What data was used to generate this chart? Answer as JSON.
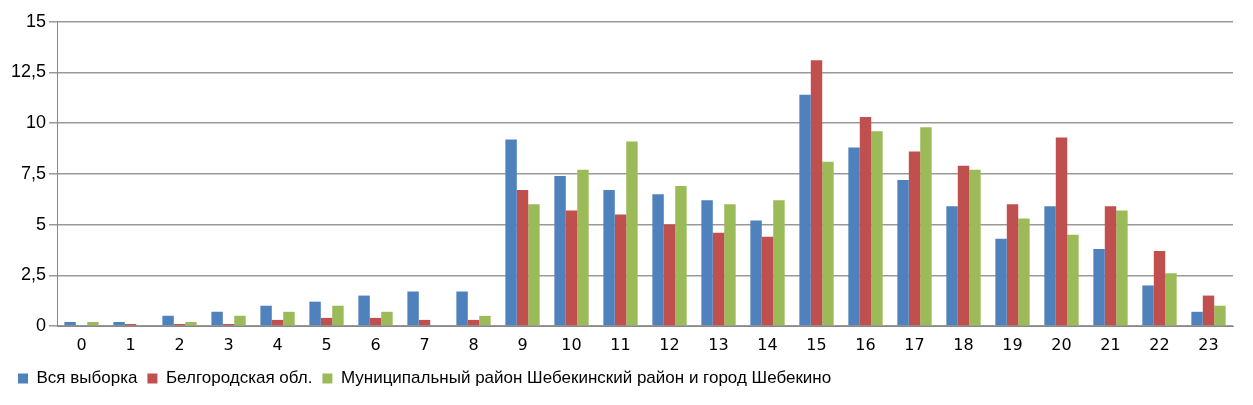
{
  "chart_data": {
    "type": "bar",
    "categories": [
      "0",
      "1",
      "2",
      "3",
      "4",
      "5",
      "6",
      "7",
      "8",
      "9",
      "10",
      "11",
      "12",
      "13",
      "14",
      "15",
      "16",
      "17",
      "18",
      "19",
      "20",
      "21",
      "22",
      "23"
    ],
    "series": [
      {
        "name": "Вся выборка",
        "color": "#4f81bd",
        "values": [
          0.2,
          0.2,
          0.5,
          0.7,
          1.0,
          1.2,
          1.5,
          1.7,
          1.7,
          9.2,
          7.4,
          6.7,
          6.5,
          6.2,
          5.2,
          11.4,
          8.8,
          7.2,
          5.9,
          4.3,
          5.9,
          3.8,
          2.0,
          0.7
        ]
      },
      {
        "name": "Белгородская обл.",
        "color": "#c0504d",
        "values": [
          0,
          0.1,
          0.1,
          0.1,
          0.3,
          0.4,
          0.4,
          0.3,
          0.3,
          6.7,
          5.7,
          5.5,
          5.0,
          4.6,
          4.4,
          13.1,
          10.3,
          8.6,
          7.9,
          6.0,
          9.3,
          5.9,
          3.7,
          1.5
        ]
      },
      {
        "name": "Муниципальный район Шебекинский район и город Шебекино",
        "color": "#9bbb59",
        "values": [
          0.2,
          0,
          0.2,
          0.5,
          0.7,
          1.0,
          0.7,
          0,
          0.5,
          6.0,
          7.7,
          9.1,
          6.9,
          6.0,
          6.2,
          8.1,
          9.6,
          9.8,
          7.7,
          5.3,
          4.5,
          5.7,
          2.6,
          1.0
        ]
      }
    ],
    "ylim": [
      0,
      15
    ],
    "yticks": [
      0,
      {
        "value": 2.5,
        "label": "2,5"
      },
      5,
      {
        "value": 7.5,
        "label": "7,5"
      },
      10,
      {
        "value": 12.5,
        "label": "12,5"
      },
      15
    ],
    "grid": "y",
    "legend": "bottom"
  }
}
